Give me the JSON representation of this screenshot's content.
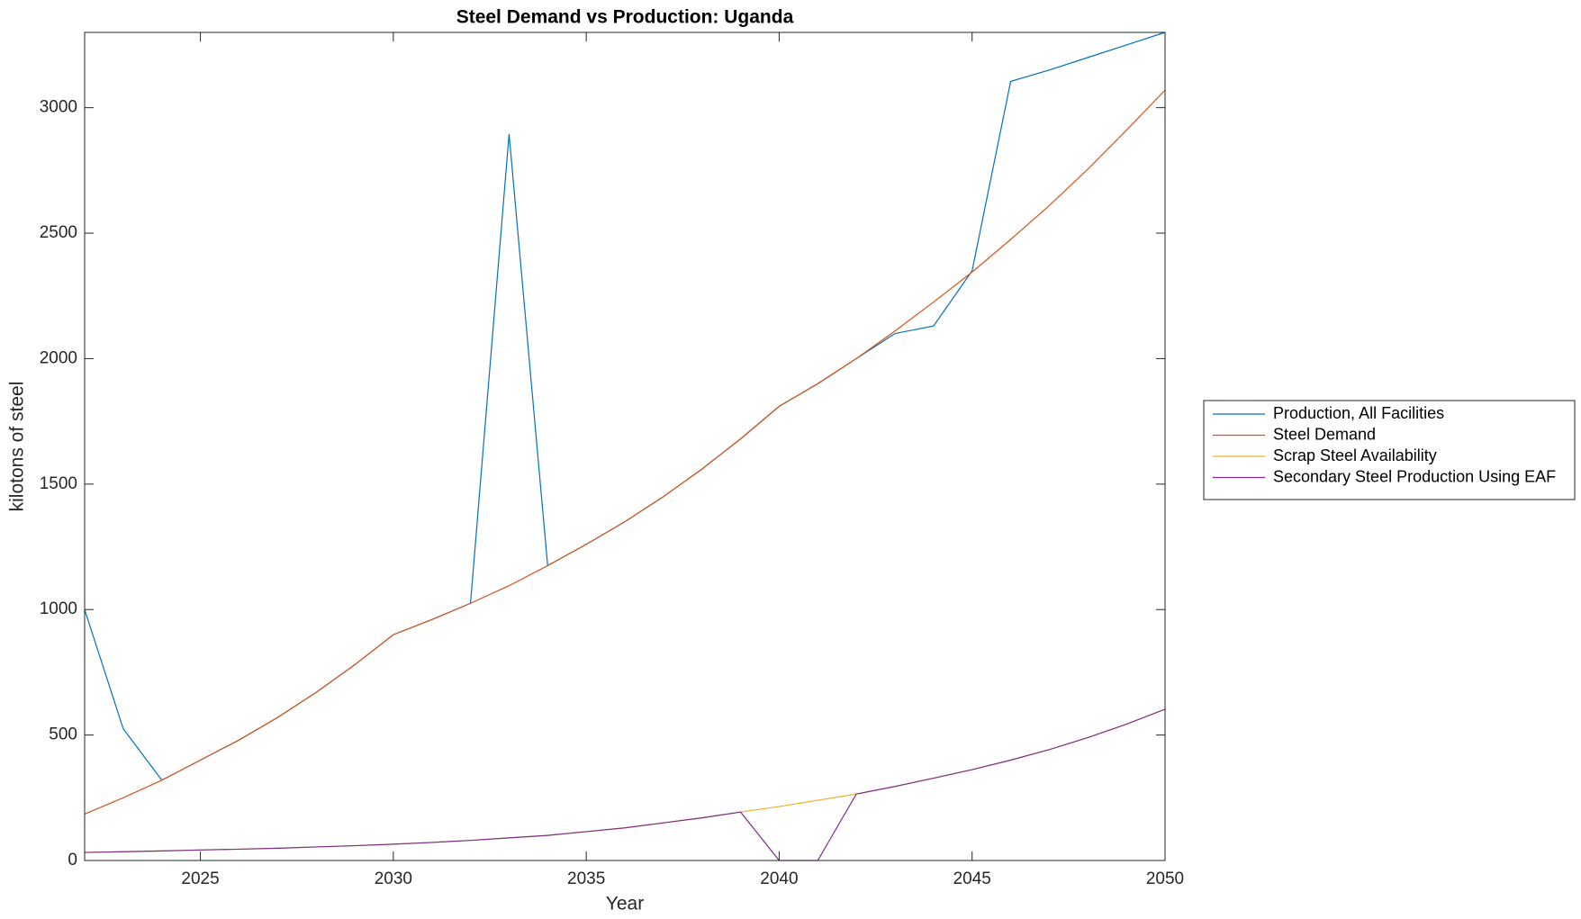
{
  "chart_data": {
    "type": "line",
    "title": "Steel Demand vs Production: Uganda",
    "x_label": "Year",
    "y_label": "kilotons of steel",
    "x": [
      2022,
      2023,
      2024,
      2025,
      2026,
      2027,
      2028,
      2029,
      2030,
      2031,
      2032,
      2033,
      2034,
      2035,
      2036,
      2037,
      2038,
      2039,
      2040,
      2041,
      2042,
      2043,
      2044,
      2045,
      2046,
      2047,
      2048,
      2049,
      2050
    ],
    "series": [
      {
        "name": "Production, All Facilities",
        "color": "#0072BD",
        "values": [
          1000,
          525,
          320,
          400,
          480,
          570,
          670,
          780,
          900,
          960,
          1025,
          2895,
          1175,
          1260,
          1350,
          1450,
          1560,
          1680,
          1810,
          1900,
          2000,
          2100,
          2130,
          2350,
          3105,
          3150,
          3200,
          3250,
          3300
        ]
      },
      {
        "name": "Steel Demand",
        "color": "#D95319",
        "values": [
          185,
          250,
          320,
          400,
          480,
          570,
          670,
          780,
          900,
          960,
          1025,
          1095,
          1175,
          1260,
          1350,
          1450,
          1560,
          1680,
          1810,
          1900,
          2000,
          2110,
          2225,
          2345,
          2475,
          2610,
          2755,
          2910,
          3070
        ]
      },
      {
        "name": "Scrap Steel Availability",
        "color": "#EDB120",
        "values": [
          32,
          35,
          38,
          42,
          45,
          49,
          54,
          59,
          65,
          72,
          80,
          90,
          100,
          115,
          130,
          150,
          170,
          193,
          215,
          240,
          265,
          295,
          328,
          362,
          400,
          442,
          490,
          543,
          603
        ]
      },
      {
        "name": "Secondary Steel Production Using EAF",
        "color": "#7E2F8E",
        "values": [
          32,
          35,
          38,
          42,
          45,
          49,
          54,
          59,
          65,
          72,
          80,
          90,
          100,
          115,
          130,
          150,
          170,
          193,
          0,
          0,
          265,
          295,
          328,
          362,
          400,
          442,
          490,
          543,
          603
        ]
      }
    ],
    "xlim": [
      2022,
      2050
    ],
    "xticks": [
      2025,
      2030,
      2035,
      2040,
      2045,
      2050
    ],
    "ylim": [
      0,
      3300
    ],
    "yticks": [
      0,
      500,
      1000,
      1500,
      2000,
      2500,
      3000
    ],
    "legend": "outside-right"
  }
}
